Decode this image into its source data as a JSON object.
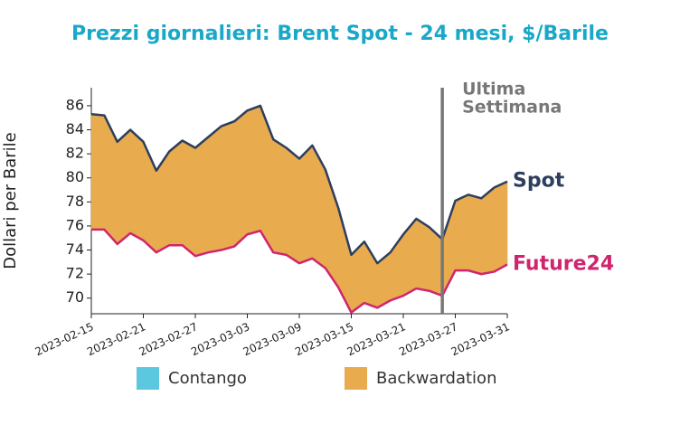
{
  "chart_data": {
    "type": "line",
    "title": "Prezzi giornalieri: Brent Spot - 24 mesi, $/Barile",
    "y_label": "Dollari per Barile",
    "x": [
      "2023-02-15",
      "2023-02-16",
      "2023-02-17",
      "2023-02-20",
      "2023-02-21",
      "2023-02-22",
      "2023-02-23",
      "2023-02-24",
      "2023-02-27",
      "2023-02-28",
      "2023-03-01",
      "2023-03-02",
      "2023-03-03",
      "2023-03-06",
      "2023-03-07",
      "2023-03-08",
      "2023-03-09",
      "2023-03-10",
      "2023-03-13",
      "2023-03-14",
      "2023-03-15",
      "2023-03-16",
      "2023-03-17",
      "2023-03-20",
      "2023-03-21",
      "2023-03-22",
      "2023-03-23",
      "2023-03-24",
      "2023-03-27",
      "2023-03-28",
      "2023-03-29",
      "2023-03-30",
      "2023-03-31"
    ],
    "xticks": [
      "2023-02-15",
      "2023-02-21",
      "2023-02-27",
      "2023-03-03",
      "2023-03-09",
      "2023-03-15",
      "2023-03-21",
      "2023-03-27",
      "2023-03-31"
    ],
    "series": [
      {
        "name": "Spot",
        "color": "#2d3e5e",
        "values": [
          85.3,
          85.2,
          83.0,
          84.0,
          83.0,
          80.6,
          82.2,
          83.1,
          82.5,
          83.4,
          84.3,
          84.7,
          85.6,
          86.0,
          83.2,
          82.5,
          81.6,
          82.7,
          80.7,
          77.5,
          73.6,
          74.7,
          72.9,
          73.8,
          75.3,
          76.6,
          75.9,
          74.9,
          78.1,
          78.6,
          78.3,
          79.2,
          79.7
        ]
      },
      {
        "name": "Future24",
        "color": "#d0256e",
        "values": [
          75.7,
          75.7,
          74.5,
          75.4,
          74.8,
          73.8,
          74.4,
          74.4,
          73.5,
          73.8,
          74.0,
          74.3,
          75.3,
          75.6,
          73.8,
          73.6,
          72.9,
          73.3,
          72.5,
          70.9,
          68.8,
          69.6,
          69.2,
          69.8,
          70.2,
          70.8,
          70.6,
          70.2,
          72.3,
          72.3,
          72.0,
          72.2,
          72.8
        ]
      }
    ],
    "legend": [
      {
        "name": "Contango",
        "color": "#5bc8e0"
      },
      {
        "name": "Backwardation",
        "color": "#e8ab4e"
      }
    ],
    "vline": {
      "x": "2023-03-24",
      "color": "#777777",
      "label": [
        "Ultima",
        "Settimana"
      ]
    },
    "ylim": [
      68.7,
      87.5
    ],
    "yticks": [
      70,
      72,
      74,
      76,
      78,
      80,
      82,
      84,
      86
    ]
  }
}
